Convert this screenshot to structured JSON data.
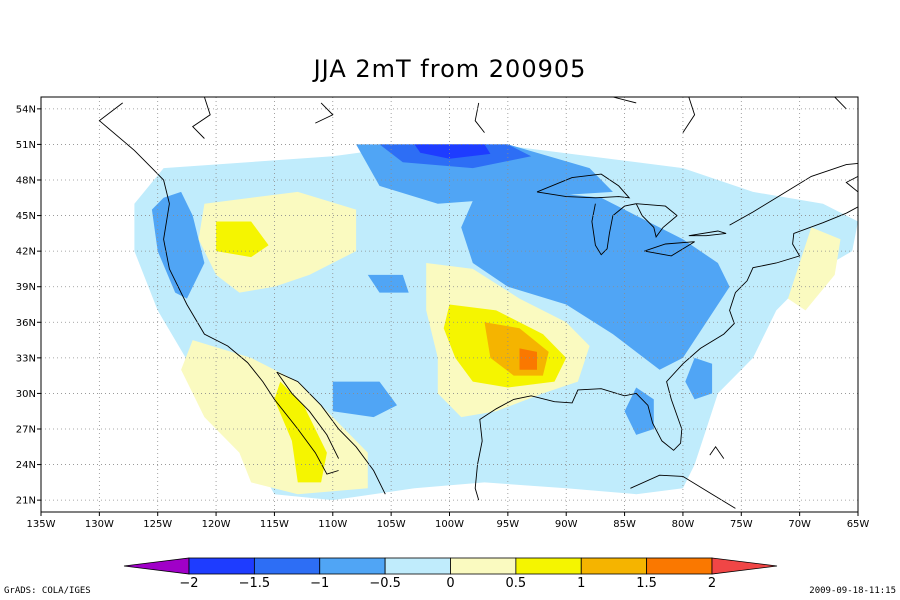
{
  "title": "JJA 2mT from 200905",
  "footer_left": "GrADS: COLA/IGES",
  "footer_right": "2009-09-18-11:15",
  "map": {
    "lon_range": [
      -135,
      -65
    ],
    "lat_range": [
      20,
      55
    ],
    "lat_ticks": [
      {
        "value": 54,
        "label": "54N"
      },
      {
        "value": 51,
        "label": "51N"
      },
      {
        "value": 48,
        "label": "48N"
      },
      {
        "value": 45,
        "label": "45N"
      },
      {
        "value": 42,
        "label": "42N"
      },
      {
        "value": 39,
        "label": "39N"
      },
      {
        "value": 36,
        "label": "36N"
      },
      {
        "value": 33,
        "label": "33N"
      },
      {
        "value": 30,
        "label": "30N"
      },
      {
        "value": 27,
        "label": "27N"
      },
      {
        "value": 24,
        "label": "24N"
      },
      {
        "value": 21,
        "label": "21N"
      }
    ],
    "lon_ticks": [
      {
        "value": -135,
        "label": "135W"
      },
      {
        "value": -130,
        "label": "130W"
      },
      {
        "value": -125,
        "label": "125W"
      },
      {
        "value": -120,
        "label": "120W"
      },
      {
        "value": -115,
        "label": "115W"
      },
      {
        "value": -110,
        "label": "110W"
      },
      {
        "value": -105,
        "label": "105W"
      },
      {
        "value": -100,
        "label": "100W"
      },
      {
        "value": -95,
        "label": "95W"
      },
      {
        "value": -90,
        "label": "90W"
      },
      {
        "value": -85,
        "label": "85W"
      },
      {
        "value": -80,
        "label": "80W"
      },
      {
        "value": -75,
        "label": "75W"
      },
      {
        "value": -70,
        "label": "70W"
      },
      {
        "value": -65,
        "label": "65W"
      }
    ],
    "grid": true
  },
  "colorbar": {
    "levels": [
      "-2",
      "-1.5",
      "-1",
      "-0.5",
      "0",
      "0.5",
      "1",
      "1.5",
      "2"
    ],
    "colors": [
      "#a000c8",
      "#1e3cff",
      "#2d6ef5",
      "#50a5f5",
      "#c0ecfc",
      "#fafac0",
      "#f5f500",
      "#f5b400",
      "#fa7800",
      "#f04646"
    ]
  },
  "regions": [
    {
      "name": "northwest-cool",
      "value": -1,
      "color": "#50a5f5",
      "poly": [
        [
          -124.5,
          46.5
        ],
        [
          -123,
          47
        ],
        [
          -122,
          45
        ],
        [
          -121,
          41
        ],
        [
          -122.5,
          38
        ],
        [
          -123.5,
          38.5
        ],
        [
          -125,
          42
        ],
        [
          -125.5,
          45.5
        ]
      ]
    },
    {
      "name": "idaho-warm",
      "value": 0.5,
      "color": "#fafac0",
      "poly": [
        [
          -121,
          46
        ],
        [
          -113,
          47
        ],
        [
          -108,
          45.5
        ],
        [
          -108,
          42
        ],
        [
          -112,
          40
        ],
        [
          -115,
          39
        ],
        [
          -118,
          38.5
        ],
        [
          -120,
          40
        ],
        [
          -121.5,
          43
        ]
      ]
    },
    {
      "name": "southwest-warm",
      "value": 0.5,
      "color": "#fafac0",
      "poly": [
        [
          -122,
          34.5
        ],
        [
          -117,
          33
        ],
        [
          -113,
          31
        ],
        [
          -110,
          28
        ],
        [
          -107,
          25
        ],
        [
          -107,
          22
        ],
        [
          -113,
          21.5
        ],
        [
          -117,
          22.5
        ],
        [
          -118,
          25
        ],
        [
          -121,
          28
        ],
        [
          -123,
          32
        ]
      ]
    },
    {
      "name": "plains-warm",
      "value": 0.5,
      "color": "#fafac0",
      "poly": [
        [
          -102,
          41
        ],
        [
          -98,
          40.5
        ],
        [
          -94,
          38
        ],
        [
          -90,
          36
        ],
        [
          -88,
          34
        ],
        [
          -89,
          31
        ],
        [
          -92,
          30
        ],
        [
          -96,
          28.5
        ],
        [
          -99,
          28
        ],
        [
          -101,
          30
        ],
        [
          -101,
          33
        ],
        [
          -102,
          37
        ]
      ]
    },
    {
      "name": "northeast-warm",
      "value": 0.5,
      "color": "#fafac0",
      "poly": [
        [
          -69,
          44
        ],
        [
          -66.5,
          43
        ],
        [
          -67,
          40
        ],
        [
          -69.5,
          37
        ],
        [
          -71,
          38
        ]
      ]
    },
    {
      "name": "plains-hot",
      "value": 1,
      "color": "#f5f500",
      "poly": [
        [
          -100,
          37.5
        ],
        [
          -96,
          37
        ],
        [
          -92,
          35
        ],
        [
          -90,
          33
        ],
        [
          -91,
          31
        ],
        [
          -95,
          30.5
        ],
        [
          -98,
          31
        ],
        [
          -99.5,
          33
        ],
        [
          -100.5,
          35.5
        ]
      ]
    },
    {
      "name": "idaho-hot",
      "value": 1,
      "color": "#f5f500",
      "poly": [
        [
          -120,
          44.5
        ],
        [
          -117,
          44.5
        ],
        [
          -115.5,
          42.5
        ],
        [
          -117,
          41.5
        ],
        [
          -120,
          42
        ]
      ]
    },
    {
      "name": "baja-hot",
      "value": 1,
      "color": "#f5f500",
      "poly": [
        [
          -114.5,
          31
        ],
        [
          -112.5,
          29
        ],
        [
          -110.5,
          25
        ],
        [
          -111,
          22.5
        ],
        [
          -113,
          22.5
        ],
        [
          -113.5,
          26
        ],
        [
          -115,
          29.5
        ]
      ]
    },
    {
      "name": "plains-orange",
      "value": 1.5,
      "color": "#f5b400",
      "poly": [
        [
          -97,
          36
        ],
        [
          -94,
          35.5
        ],
        [
          -91.5,
          33.5
        ],
        [
          -92,
          31.5
        ],
        [
          -94.5,
          31.5
        ],
        [
          -96.5,
          33
        ]
      ]
    },
    {
      "name": "plains-core",
      "value": 2,
      "color": "#fa7800",
      "poly": [
        [
          -94,
          33.8
        ],
        [
          -92.5,
          33.5
        ],
        [
          -92.5,
          32
        ],
        [
          -94,
          32
        ]
      ]
    },
    {
      "name": "great-lakes-cool",
      "value": -1,
      "color": "#50a5f5",
      "poly": [
        [
          -97,
          48.5
        ],
        [
          -92,
          47
        ],
        [
          -87,
          46.5
        ],
        [
          -84,
          45
        ],
        [
          -80,
          43
        ],
        [
          -77,
          41
        ],
        [
          -76,
          39
        ],
        [
          -78,
          36
        ],
        [
          -80,
          33
        ],
        [
          -82,
          32
        ],
        [
          -86,
          35
        ],
        [
          -90,
          37.5
        ],
        [
          -95,
          39
        ],
        [
          -98,
          41
        ],
        [
          -99,
          44
        ]
      ]
    },
    {
      "name": "northern-cool",
      "value": -1,
      "color": "#50a5f5",
      "poly": [
        [
          -108,
          51
        ],
        [
          -95,
          51
        ],
        [
          -88,
          49
        ],
        [
          -86,
          47
        ],
        [
          -94,
          46.5
        ],
        [
          -101,
          46
        ],
        [
          -106,
          47.5
        ]
      ]
    },
    {
      "name": "northern-colder",
      "value": -1.5,
      "color": "#2d6ef5",
      "poly": [
        [
          -106,
          51
        ],
        [
          -95,
          51
        ],
        [
          -93,
          50
        ],
        [
          -98,
          49
        ],
        [
          -104,
          49.5
        ]
      ]
    },
    {
      "name": "northern-coldest",
      "value": -2,
      "color": "#1e3cff",
      "poly": [
        [
          -103,
          51
        ],
        [
          -97,
          51
        ],
        [
          -96.5,
          50.2
        ],
        [
          -100,
          49.8
        ],
        [
          -102.5,
          50.3
        ]
      ]
    },
    {
      "name": "texas-cool",
      "value": -1,
      "color": "#50a5f5",
      "poly": [
        [
          -110,
          31
        ],
        [
          -106,
          31
        ],
        [
          -104.5,
          29
        ],
        [
          -106.5,
          28
        ],
        [
          -110,
          28.5
        ]
      ]
    },
    {
      "name": "florida-cool",
      "value": -1,
      "color": "#50a5f5",
      "poly": [
        [
          -84,
          30.5
        ],
        [
          -82.5,
          29.5
        ],
        [
          -82.5,
          27
        ],
        [
          -84,
          26.5
        ],
        [
          -85,
          28.5
        ]
      ]
    },
    {
      "name": "carolina-cool",
      "value": -1,
      "color": "#50a5f5",
      "poly": [
        [
          -79,
          33
        ],
        [
          -77.5,
          32.5
        ],
        [
          -77.5,
          30
        ],
        [
          -79,
          29.5
        ],
        [
          -79.8,
          31
        ]
      ]
    },
    {
      "name": "wyoming-cool",
      "value": -1,
      "color": "#50a5f5",
      "poly": [
        [
          -107,
          40
        ],
        [
          -104,
          40
        ],
        [
          -103.5,
          38.5
        ],
        [
          -106,
          38.5
        ]
      ]
    }
  ]
}
